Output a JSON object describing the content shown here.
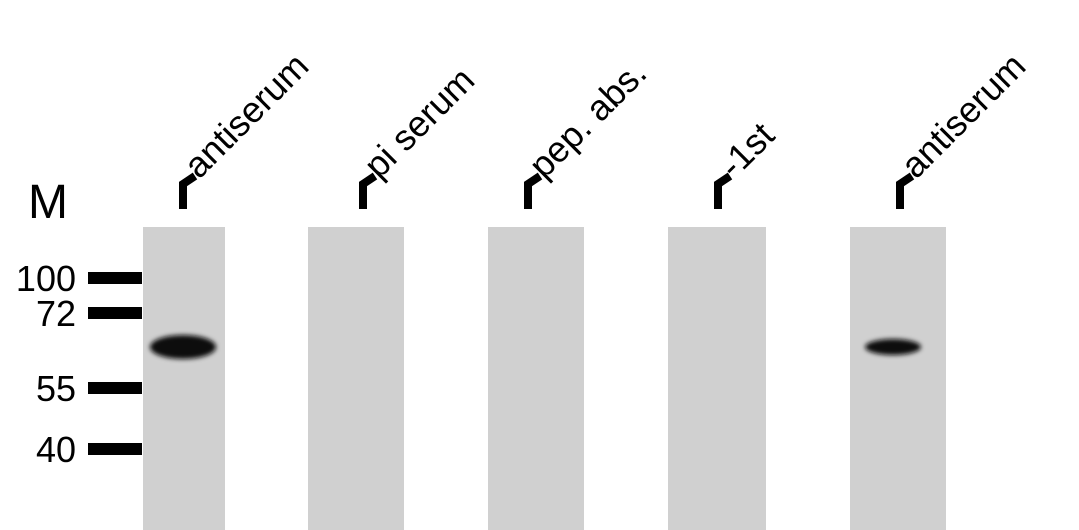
{
  "marker_label": "M",
  "markers": [
    "100",
    "72",
    "55",
    "40"
  ],
  "lanes": [
    {
      "label": "antiserum"
    },
    {
      "label": "pi serum"
    },
    {
      "label": "pep. abs."
    },
    {
      "label": "-1st"
    },
    {
      "label": "antiserum"
    }
  ]
}
